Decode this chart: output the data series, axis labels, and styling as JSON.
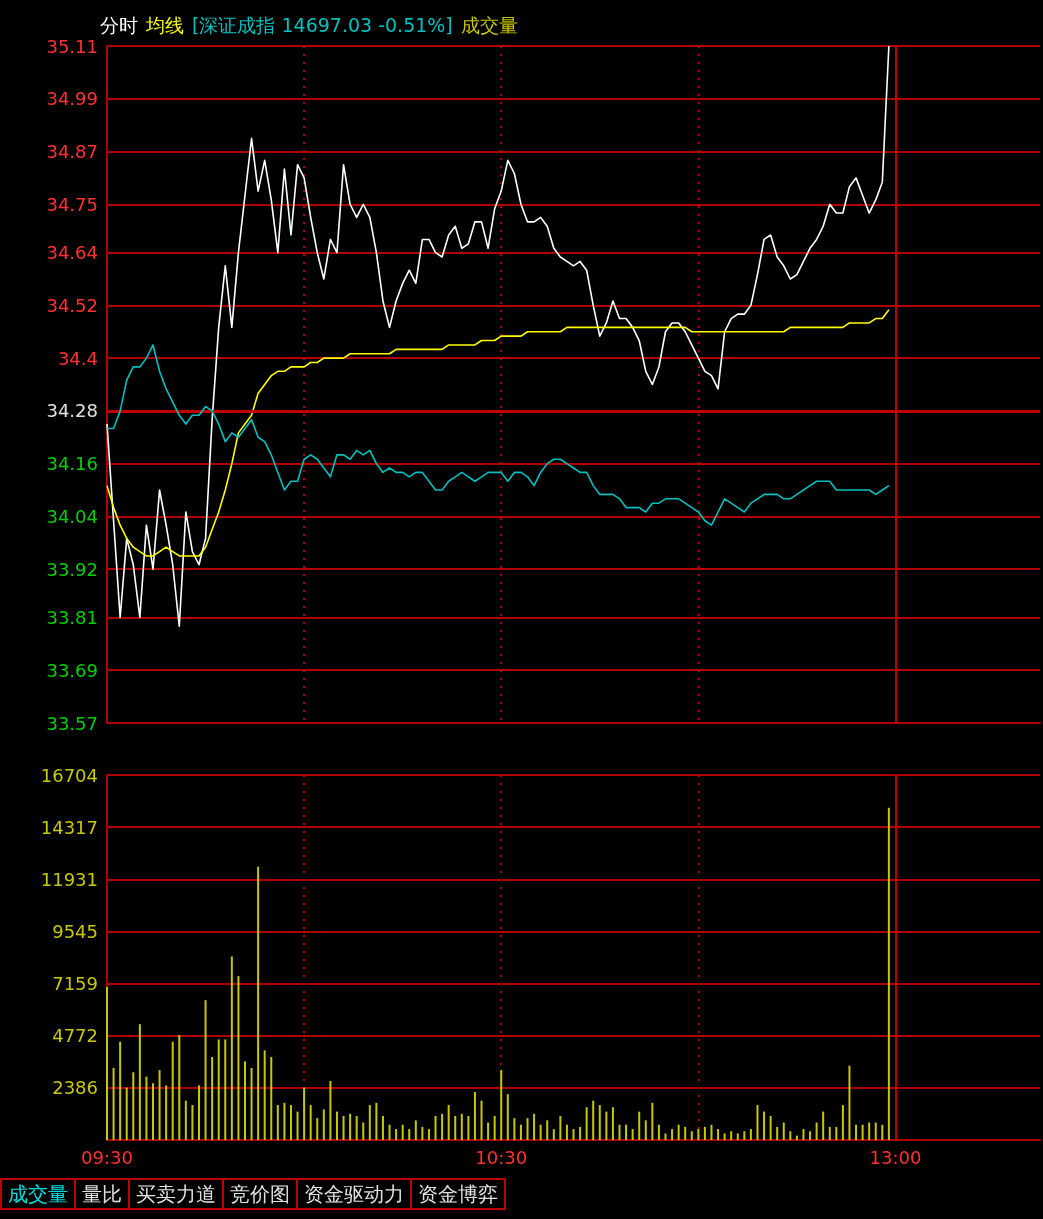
{
  "chart_data": [
    {
      "type": "line",
      "legend": "top left",
      "grid": true,
      "tick_labels": "y",
      "annotations": [
        "[深证成指 14697.03 -0.51%]"
      ],
      "categories": [
        "09:30",
        null,
        null,
        null,
        null,
        null,
        null,
        null,
        null,
        null,
        null,
        null,
        null,
        null,
        null,
        null,
        null,
        null,
        null,
        null,
        null,
        null,
        null,
        null,
        null,
        null,
        null,
        null,
        null,
        null,
        null,
        null,
        null,
        null,
        null,
        null,
        null,
        null,
        null,
        null,
        null,
        null,
        null,
        null,
        null,
        null,
        null,
        null,
        null,
        null,
        null,
        null,
        null,
        null,
        null,
        null,
        null,
        null,
        null,
        null,
        "10:30",
        null,
        null,
        null,
        null,
        null,
        null,
        null,
        null,
        null,
        null,
        null,
        null,
        null,
        null,
        null,
        null,
        null,
        null,
        null,
        null,
        null,
        null,
        null,
        null,
        null,
        null,
        null,
        null,
        null,
        null,
        null,
        null,
        null,
        null,
        null,
        null,
        null,
        null,
        null,
        null,
        null,
        null,
        null,
        null,
        null,
        null,
        null,
        null,
        null,
        null,
        null,
        null,
        null,
        null,
        null,
        null,
        null,
        null,
        null,
        "13:00",
        null,
        null,
        null,
        null,
        null,
        null,
        null,
        null,
        null,
        null,
        null,
        null,
        null,
        null,
        null,
        null,
        null,
        null,
        null,
        null,
        null,
        null
      ],
      "ylim": [
        33.57,
        35.11
      ],
      "yticks": [
        33.57,
        33.69,
        33.81,
        33.92,
        34.04,
        34.16,
        34.28,
        34.4,
        34.52,
        34.64,
        34.75,
        34.87,
        34.99,
        35.11
      ],
      "ref_lines": [
        {
          "axis": "y",
          "value": 34.28,
          "color": "#c00000"
        },
        {
          "axis": "x",
          "value": "13:00",
          "color": "#c00000"
        }
      ],
      "series": [
        {
          "name": "分时",
          "color": "#ffffff",
          "values": [
            34.25,
            34.03,
            33.81,
            33.99,
            33.93,
            33.81,
            34.02,
            33.92,
            34.1,
            34.02,
            33.93,
            33.79,
            34.05,
            33.96,
            33.93,
            33.99,
            34.26,
            34.47,
            34.61,
            34.47,
            34.64,
            34.77,
            34.9,
            34.78,
            34.85,
            34.76,
            34.64,
            34.83,
            34.68,
            34.84,
            34.81,
            34.72,
            34.64,
            34.58,
            34.67,
            34.64,
            34.84,
            34.75,
            34.72,
            34.75,
            34.72,
            34.64,
            34.53,
            34.47,
            34.53,
            34.57,
            34.6,
            34.57,
            34.67,
            34.67,
            34.64,
            34.63,
            34.68,
            34.7,
            34.65,
            34.66,
            34.71,
            34.71,
            34.65,
            34.74,
            34.78,
            34.85,
            34.82,
            34.75,
            34.71,
            34.71,
            34.72,
            34.7,
            34.65,
            34.63,
            34.62,
            34.61,
            34.62,
            34.6,
            34.52,
            34.45,
            34.48,
            34.53,
            34.49,
            34.49,
            34.47,
            34.44,
            34.37,
            34.34,
            34.38,
            34.46,
            34.48,
            34.48,
            34.46,
            34.43,
            34.4,
            34.37,
            34.36,
            34.33,
            34.46,
            34.49,
            34.5,
            34.5,
            34.52,
            34.59,
            34.67,
            34.68,
            34.63,
            34.61,
            34.58,
            34.59,
            34.62,
            34.65,
            34.67,
            34.7,
            34.75,
            34.73,
            34.73,
            34.79,
            34.81,
            34.77,
            34.73,
            34.76,
            34.8,
            35.11,
            null,
            null,
            null,
            null,
            null,
            null,
            null,
            null,
            null,
            null,
            null,
            null,
            null,
            null,
            null,
            null,
            null,
            null,
            null,
            null,
            null,
            null,
            null
          ]
        },
        {
          "name": "均线",
          "color": "#ffff00",
          "values": [
            34.11,
            34.06,
            34.02,
            33.99,
            33.97,
            33.96,
            33.95,
            33.95,
            33.96,
            33.97,
            33.96,
            33.95,
            33.95,
            33.95,
            33.95,
            33.97,
            34.01,
            34.05,
            34.1,
            34.16,
            34.23,
            34.25,
            34.27,
            34.32,
            34.34,
            34.36,
            34.37,
            34.37,
            34.38,
            34.38,
            34.38,
            34.39,
            34.39,
            34.4,
            34.4,
            34.4,
            34.4,
            34.41,
            34.41,
            34.41,
            34.41,
            34.41,
            34.41,
            34.41,
            34.42,
            34.42,
            34.42,
            34.42,
            34.42,
            34.42,
            34.42,
            34.42,
            34.43,
            34.43,
            34.43,
            34.43,
            34.43,
            34.44,
            34.44,
            34.44,
            34.45,
            34.45,
            34.45,
            34.45,
            34.46,
            34.46,
            34.46,
            34.46,
            34.46,
            34.46,
            34.47,
            34.47,
            34.47,
            34.47,
            34.47,
            34.47,
            34.47,
            34.47,
            34.47,
            34.47,
            34.47,
            34.47,
            34.47,
            34.47,
            34.47,
            34.47,
            34.47,
            34.47,
            34.47,
            34.46,
            34.46,
            34.46,
            34.46,
            34.46,
            34.46,
            34.46,
            34.46,
            34.46,
            34.46,
            34.46,
            34.46,
            34.46,
            34.46,
            34.46,
            34.47,
            34.47,
            34.47,
            34.47,
            34.47,
            34.47,
            34.47,
            34.47,
            34.47,
            34.48,
            34.48,
            34.48,
            34.48,
            34.49,
            34.49,
            34.51,
            null,
            null,
            null,
            null,
            null,
            null,
            null,
            null,
            null,
            null,
            null,
            null,
            null,
            null,
            null,
            null,
            null,
            null,
            null,
            null,
            null,
            null,
            null
          ]
        },
        {
          "color": "#00c0c0",
          "values": [
            34.24,
            34.24,
            34.28,
            34.35,
            34.38,
            34.38,
            34.4,
            34.43,
            34.37,
            34.33,
            34.3,
            34.27,
            34.25,
            34.27,
            34.27,
            34.29,
            34.28,
            34.25,
            34.21,
            34.23,
            34.22,
            34.24,
            34.26,
            34.22,
            34.21,
            34.18,
            34.14,
            34.1,
            34.12,
            34.12,
            34.17,
            34.18,
            34.17,
            34.15,
            34.13,
            34.18,
            34.18,
            34.17,
            34.19,
            34.18,
            34.19,
            34.16,
            34.14,
            34.15,
            34.14,
            34.14,
            34.13,
            34.14,
            34.14,
            34.12,
            34.1,
            34.1,
            34.12,
            34.13,
            34.14,
            34.13,
            34.12,
            34.13,
            34.14,
            34.14,
            34.14,
            34.12,
            34.14,
            34.14,
            34.13,
            34.11,
            34.14,
            34.16,
            34.17,
            34.17,
            34.16,
            34.15,
            34.14,
            34.14,
            34.11,
            34.09,
            34.09,
            34.09,
            34.08,
            34.06,
            34.06,
            34.06,
            34.05,
            34.07,
            34.07,
            34.08,
            34.08,
            34.08,
            34.07,
            34.06,
            34.05,
            34.03,
            34.02,
            34.05,
            34.08,
            34.07,
            34.06,
            34.05,
            34.07,
            34.08,
            34.09,
            34.09,
            34.09,
            34.08,
            34.08,
            34.09,
            34.1,
            34.11,
            34.12,
            34.12,
            34.12,
            34.1,
            34.1,
            34.1,
            34.1,
            34.1,
            34.1,
            34.09,
            34.1,
            34.11,
            null,
            null,
            null,
            null,
            null,
            null,
            null,
            null,
            null,
            null,
            null,
            null,
            null,
            null,
            null,
            null,
            null,
            null,
            null,
            null,
            null,
            null,
            null
          ]
        }
      ]
    },
    {
      "type": "bar",
      "legend": "top left",
      "grid": true,
      "annotations": [
        "成交量",
        "量比",
        "买卖力道",
        "竞价图",
        "资金驱动力",
        "资金博弈"
      ],
      "categories": [
        "09:30",
        null,
        null,
        null,
        null,
        null,
        null,
        null,
        null,
        null,
        null,
        null,
        null,
        null,
        null,
        null,
        null,
        null,
        null,
        null,
        null,
        null,
        null,
        null,
        null,
        null,
        null,
        null,
        null,
        null,
        null,
        null,
        null,
        null,
        null,
        null,
        null,
        null,
        null,
        null,
        null,
        null,
        null,
        null,
        null,
        null,
        null,
        null,
        null,
        null,
        null,
        null,
        null,
        null,
        null,
        null,
        null,
        null,
        null,
        null,
        "10:30",
        null,
        null,
        null,
        null,
        null,
        null,
        null,
        null,
        null,
        null,
        null,
        null,
        null,
        null,
        null,
        null,
        null,
        null,
        null,
        null,
        null,
        null,
        null,
        null,
        null,
        null,
        null,
        null,
        null,
        null,
        null,
        null,
        null,
        null,
        null,
        null,
        null,
        null,
        null,
        null,
        null,
        null,
        null,
        null,
        null,
        null,
        null,
        null,
        null,
        null,
        null,
        null,
        null,
        null,
        null,
        null,
        null,
        null,
        null,
        "13:00",
        null,
        null,
        null,
        null,
        null,
        null,
        null,
        null,
        null,
        null,
        null,
        null,
        null,
        null,
        null,
        null,
        null,
        null,
        null,
        null,
        null,
        null
      ],
      "ylim": [
        0,
        16704
      ],
      "yticks": [
        2386,
        4772,
        7159,
        9545,
        11931,
        14317,
        16704
      ],
      "ref_lines": [
        {
          "axis": "x",
          "value": "13:00",
          "color": "#c00000"
        }
      ],
      "series": [
        {
          "name": "成交量",
          "color": "#c8c800",
          "values": [
            7000,
            3300,
            4500,
            2400,
            3100,
            5300,
            2900,
            2600,
            3200,
            2500,
            4500,
            4800,
            1800,
            1600,
            2500,
            6400,
            3800,
            4600,
            4600,
            8400,
            7500,
            3600,
            3300,
            12500,
            4100,
            3800,
            1600,
            1700,
            1600,
            1300,
            2400,
            1600,
            1000,
            1400,
            2700,
            1300,
            1100,
            1200,
            1100,
            800,
            1600,
            1700,
            1100,
            700,
            500,
            700,
            500,
            900,
            600,
            500,
            1100,
            1200,
            1600,
            1100,
            1200,
            1100,
            2200,
            1800,
            800,
            1100,
            3200,
            2100,
            1000,
            700,
            1000,
            1200,
            700,
            900,
            500,
            1100,
            700,
            500,
            600,
            1500,
            1800,
            1600,
            1300,
            1500,
            700,
            700,
            500,
            1300,
            900,
            1700,
            700,
            300,
            500,
            700,
            600,
            400,
            500,
            600,
            700,
            500,
            300,
            400,
            300,
            400,
            500,
            1600,
            1300,
            1100,
            600,
            800,
            400,
            200,
            500,
            400,
            800,
            1300,
            600,
            600,
            1600,
            3400,
            700,
            700,
            800,
            800,
            700,
            15200,
            null,
            null,
            null,
            null,
            null,
            null,
            null,
            null,
            null,
            null,
            null,
            null,
            null,
            null,
            null,
            null,
            null,
            null,
            null,
            null,
            null,
            null,
            null
          ]
        }
      ]
    }
  ]
}
